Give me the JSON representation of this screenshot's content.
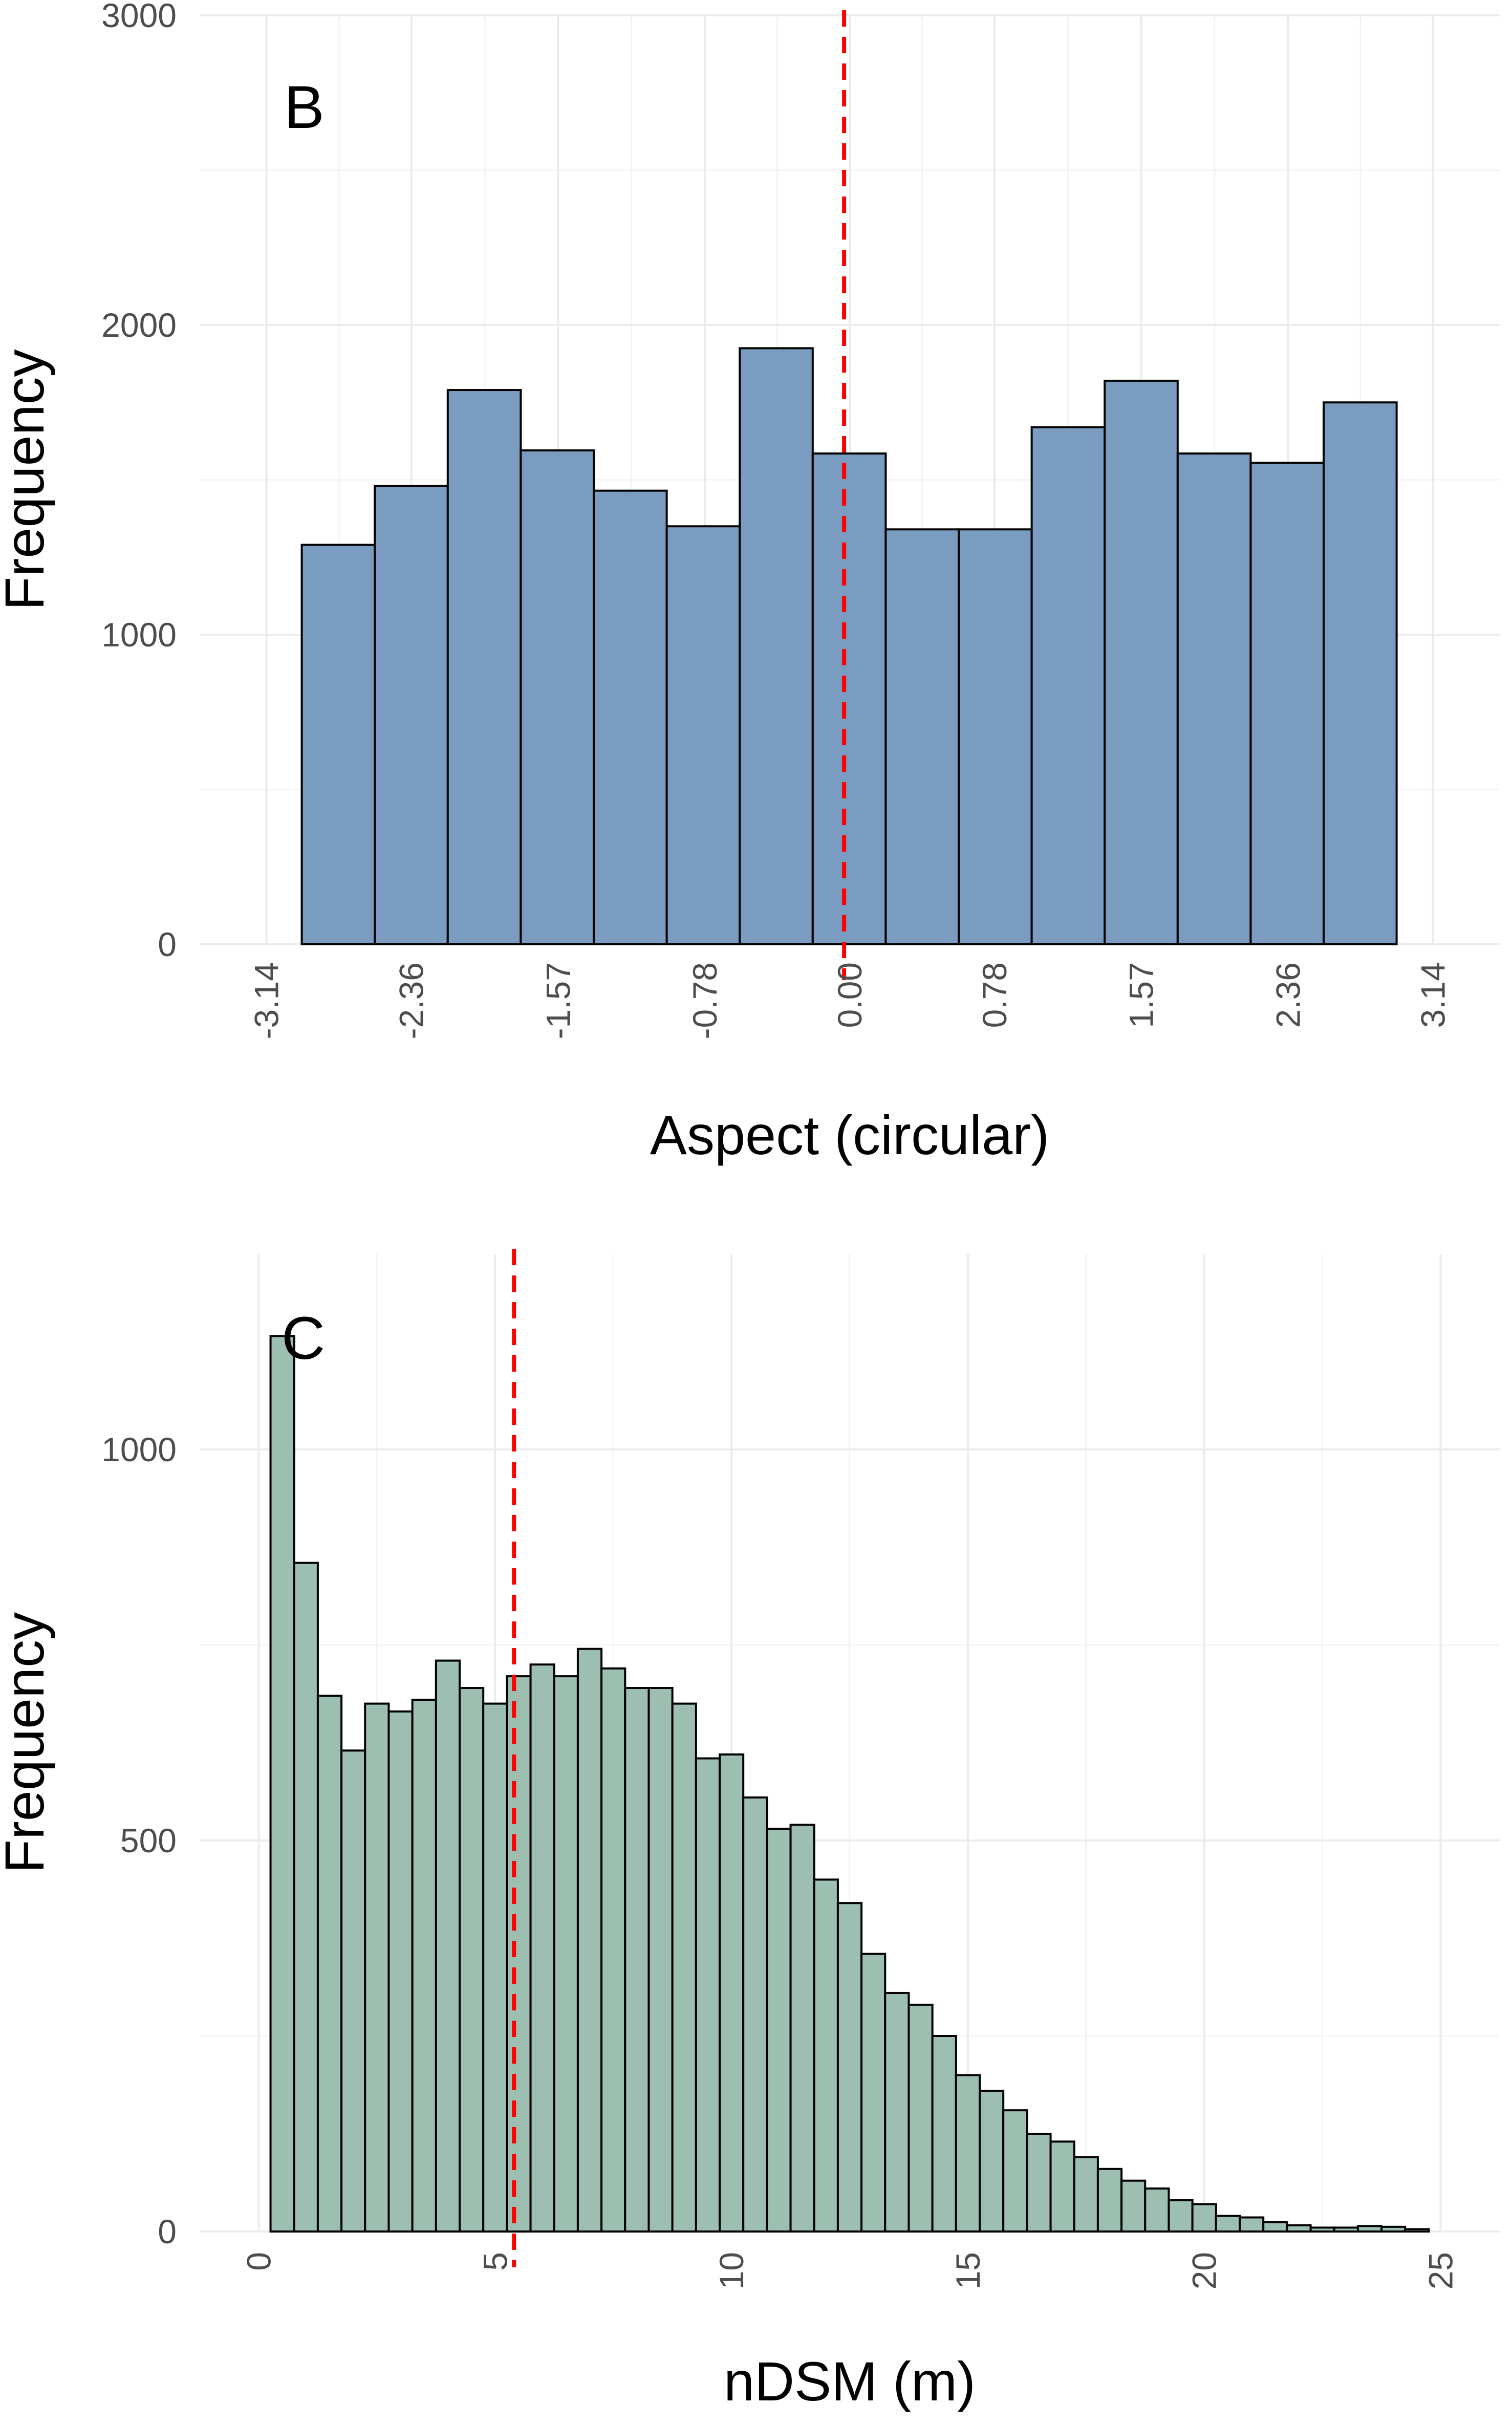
{
  "chart_data": [
    {
      "type": "bar",
      "subtype": "histogram",
      "panel_label": "B",
      "xlabel": "Aspect (circular)",
      "ylabel": "Frequency",
      "xlim": [
        -3.5,
        3.5
      ],
      "ylim": [
        0,
        3000
      ],
      "x_ticks": [
        -3.14,
        -2.36,
        -1.57,
        -0.78,
        0.0,
        0.78,
        1.57,
        2.36,
        3.14
      ],
      "x_tick_labels": [
        "-3.14",
        "-2.36",
        "-1.57",
        "-0.78",
        "0.00",
        "0.78",
        "1.57",
        "2.36",
        "3.14"
      ],
      "y_ticks": [
        0,
        1000,
        2000,
        3000
      ],
      "y_tick_labels": [
        "0",
        "1000",
        "2000",
        "3000"
      ],
      "bin_width": 0.393,
      "bins": [
        {
          "x0": -2.95,
          "x1": -2.557,
          "count": 1290
        },
        {
          "x0": -2.557,
          "x1": -2.164,
          "count": 1480
        },
        {
          "x0": -2.164,
          "x1": -1.771,
          "count": 1790
        },
        {
          "x0": -1.771,
          "x1": -1.378,
          "count": 1595
        },
        {
          "x0": -1.378,
          "x1": -0.985,
          "count": 1465
        },
        {
          "x0": -0.985,
          "x1": -0.592,
          "count": 1350
        },
        {
          "x0": -0.592,
          "x1": -0.199,
          "count": 1925
        },
        {
          "x0": -0.199,
          "x1": 0.194,
          "count": 1585
        },
        {
          "x0": 0.194,
          "x1": 0.587,
          "count": 1340
        },
        {
          "x0": 0.587,
          "x1": 0.98,
          "count": 1340
        },
        {
          "x0": 0.98,
          "x1": 1.373,
          "count": 1670
        },
        {
          "x0": 1.373,
          "x1": 1.766,
          "count": 1820
        },
        {
          "x0": 1.766,
          "x1": 2.159,
          "count": 1585
        },
        {
          "x0": 2.159,
          "x1": 2.552,
          "count": 1555
        },
        {
          "x0": 2.552,
          "x1": 2.945,
          "count": 1750
        }
      ],
      "reference_line": {
        "x": -0.03,
        "style": "dashed"
      },
      "grid": true,
      "colors": {
        "fill": "#7a9cc0",
        "outline": "#000000",
        "reference_line": "#ff0000"
      }
    },
    {
      "type": "bar",
      "subtype": "histogram",
      "panel_label": "C",
      "xlabel": "nDSM (m)",
      "ylabel": "Frequency",
      "xlim": [
        -1.25,
        26.25
      ],
      "ylim": [
        0,
        1250
      ],
      "x_ticks": [
        0,
        5,
        10,
        15,
        20,
        25
      ],
      "x_tick_labels": [
        "0",
        "5",
        "10",
        "15",
        "20",
        "25"
      ],
      "y_ticks": [
        0,
        500,
        1000
      ],
      "y_tick_labels": [
        "0",
        "500",
        "1000"
      ],
      "bin_width": 0.5,
      "bin_start": 0.25,
      "counts": [
        1145,
        855,
        685,
        615,
        675,
        665,
        680,
        730,
        695,
        675,
        710,
        725,
        710,
        745,
        720,
        695,
        695,
        675,
        605,
        610,
        555,
        515,
        520,
        450,
        420,
        355,
        305,
        290,
        250,
        200,
        180,
        155,
        125,
        115,
        95,
        80,
        65,
        55,
        40,
        35,
        20,
        18,
        12,
        8,
        5,
        5,
        7,
        6,
        3
      ],
      "reference_line": {
        "x": 5.4,
        "style": "dashed"
      },
      "grid": true,
      "colors": {
        "fill": "#9dbfb2",
        "outline": "#000000",
        "reference_line": "#ff0000"
      }
    }
  ]
}
